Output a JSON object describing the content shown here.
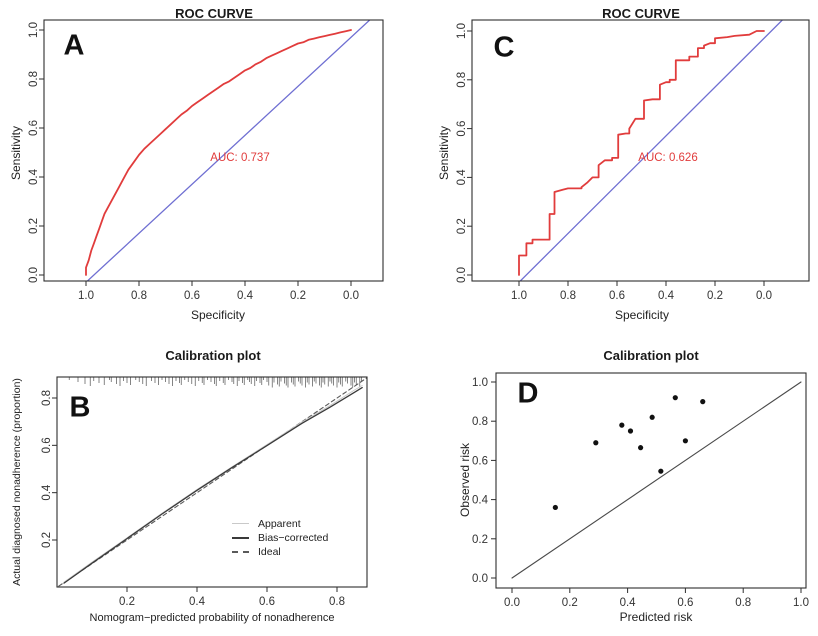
{
  "figure_background": "#ffffff",
  "colors": {
    "roc_curve": "#e13c3c",
    "reference_diagonal": "#6f6fd2",
    "frame": "#2e2e2e",
    "tick_text": "#333333",
    "apparent": "#c9c9c9",
    "bias_corrected": "#3a3a3a",
    "ideal": "#5a5a5a",
    "scatter_point": "#111111",
    "d_diagonal": "#4a4a4a",
    "rug": "#666666",
    "auc_text": "#e13c3c"
  },
  "chart_data": [
    {
      "id": "A",
      "letter": "A",
      "type": "line",
      "title": "ROC CURVE",
      "xlabel": "Specificity",
      "ylabel": "Sensitivity",
      "x_ticks": [
        "1.0",
        "0.8",
        "0.6",
        "0.4",
        "0.2",
        "0.0"
      ],
      "x_tick_vals": [
        1.0,
        0.8,
        0.6,
        0.4,
        0.2,
        0.0
      ],
      "y_ticks": [
        "0.0",
        "0.2",
        "0.4",
        "0.6",
        "0.8",
        "1.0"
      ],
      "y_tick_vals": [
        0.0,
        0.2,
        0.4,
        0.6,
        0.8,
        1.0
      ],
      "xlim": [
        1.04,
        -0.04
      ],
      "ylim": [
        -0.04,
        1.04
      ],
      "x_axis_reversed": true,
      "annotation": "AUC: 0.737",
      "series": [
        {
          "name": "ROC curve",
          "color_key": "roc_curve",
          "width": 1.8,
          "points": [
            [
              1.0,
              0.0
            ],
            [
              1.0,
              0.03
            ],
            [
              0.99,
              0.06
            ],
            [
              0.98,
              0.1
            ],
            [
              0.97,
              0.13
            ],
            [
              0.96,
              0.16
            ],
            [
              0.95,
              0.19
            ],
            [
              0.94,
              0.22
            ],
            [
              0.93,
              0.25
            ],
            [
              0.92,
              0.27
            ],
            [
              0.9,
              0.31
            ],
            [
              0.88,
              0.35
            ],
            [
              0.86,
              0.39
            ],
            [
              0.84,
              0.43
            ],
            [
              0.82,
              0.46
            ],
            [
              0.8,
              0.49
            ],
            [
              0.78,
              0.515
            ],
            [
              0.76,
              0.535
            ],
            [
              0.74,
              0.555
            ],
            [
              0.72,
              0.575
            ],
            [
              0.7,
              0.595
            ],
            [
              0.68,
              0.615
            ],
            [
              0.66,
              0.635
            ],
            [
              0.64,
              0.655
            ],
            [
              0.62,
              0.67
            ],
            [
              0.6,
              0.69
            ],
            [
              0.58,
              0.705
            ],
            [
              0.56,
              0.72
            ],
            [
              0.54,
              0.735
            ],
            [
              0.52,
              0.75
            ],
            [
              0.5,
              0.765
            ],
            [
              0.48,
              0.78
            ],
            [
              0.46,
              0.79
            ],
            [
              0.44,
              0.805
            ],
            [
              0.42,
              0.82
            ],
            [
              0.4,
              0.835
            ],
            [
              0.38,
              0.845
            ],
            [
              0.36,
              0.86
            ],
            [
              0.34,
              0.87
            ],
            [
              0.32,
              0.885
            ],
            [
              0.3,
              0.895
            ],
            [
              0.28,
              0.905
            ],
            [
              0.26,
              0.915
            ],
            [
              0.24,
              0.925
            ],
            [
              0.22,
              0.935
            ],
            [
              0.2,
              0.945
            ],
            [
              0.18,
              0.95
            ],
            [
              0.16,
              0.96
            ],
            [
              0.14,
              0.965
            ],
            [
              0.12,
              0.97
            ],
            [
              0.1,
              0.975
            ],
            [
              0.08,
              0.98
            ],
            [
              0.06,
              0.985
            ],
            [
              0.04,
              0.99
            ],
            [
              0.02,
              0.995
            ],
            [
              0.0,
              1.0
            ]
          ]
        },
        {
          "name": "Reference diagonal",
          "color_key": "reference_diagonal",
          "width": 1.3,
          "points": [
            [
              1.07,
              -0.1
            ],
            [
              -0.12,
              1.09
            ]
          ]
        }
      ]
    },
    {
      "id": "C",
      "letter": "C",
      "type": "line",
      "title": "ROC CURVE",
      "xlabel": "Specificity",
      "ylabel": "Sensitivity",
      "x_ticks": [
        "1.0",
        "0.8",
        "0.6",
        "0.4",
        "0.2",
        "0.0"
      ],
      "x_tick_vals": [
        1.0,
        0.8,
        0.6,
        0.4,
        0.2,
        0.0
      ],
      "y_ticks": [
        "0.0",
        "0.2",
        "0.4",
        "0.6",
        "0.8",
        "1.0"
      ],
      "y_tick_vals": [
        0.0,
        0.2,
        0.4,
        0.6,
        0.8,
        1.0
      ],
      "xlim": [
        1.04,
        -0.04
      ],
      "ylim": [
        -0.04,
        1.04
      ],
      "x_axis_reversed": true,
      "annotation": "AUC: 0.626",
      "series": [
        {
          "name": "ROC curve",
          "color_key": "roc_curve",
          "width": 1.8,
          "points": [
            [
              1.0,
              0.0
            ],
            [
              1.0,
              0.08
            ],
            [
              0.97,
              0.08
            ],
            [
              0.97,
              0.13
            ],
            [
              0.945,
              0.13
            ],
            [
              0.945,
              0.145
            ],
            [
              0.875,
              0.145
            ],
            [
              0.875,
              0.25
            ],
            [
              0.855,
              0.25
            ],
            [
              0.855,
              0.34
            ],
            [
              0.82,
              0.35
            ],
            [
              0.8,
              0.355
            ],
            [
              0.745,
              0.355
            ],
            [
              0.745,
              0.36
            ],
            [
              0.72,
              0.38
            ],
            [
              0.7,
              0.4
            ],
            [
              0.675,
              0.4
            ],
            [
              0.675,
              0.45
            ],
            [
              0.65,
              0.47
            ],
            [
              0.62,
              0.47
            ],
            [
              0.62,
              0.48
            ],
            [
              0.595,
              0.48
            ],
            [
              0.595,
              0.575
            ],
            [
              0.565,
              0.58
            ],
            [
              0.55,
              0.58
            ],
            [
              0.55,
              0.6
            ],
            [
              0.525,
              0.64
            ],
            [
              0.49,
              0.64
            ],
            [
              0.49,
              0.715
            ],
            [
              0.455,
              0.72
            ],
            [
              0.425,
              0.72
            ],
            [
              0.425,
              0.78
            ],
            [
              0.4,
              0.79
            ],
            [
              0.385,
              0.79
            ],
            [
              0.385,
              0.8
            ],
            [
              0.36,
              0.8
            ],
            [
              0.36,
              0.88
            ],
            [
              0.305,
              0.88
            ],
            [
              0.305,
              0.895
            ],
            [
              0.27,
              0.895
            ],
            [
              0.27,
              0.93
            ],
            [
              0.245,
              0.93
            ],
            [
              0.245,
              0.94
            ],
            [
              0.22,
              0.95
            ],
            [
              0.2,
              0.95
            ],
            [
              0.2,
              0.97
            ],
            [
              0.15,
              0.975
            ],
            [
              0.12,
              0.98
            ],
            [
              0.06,
              0.985
            ],
            [
              0.03,
              1.0
            ],
            [
              0.0,
              1.0
            ]
          ]
        },
        {
          "name": "Reference diagonal",
          "color_key": "reference_diagonal",
          "width": 1.3,
          "points": [
            [
              1.07,
              -0.1
            ],
            [
              -0.12,
              1.09
            ]
          ]
        }
      ]
    },
    {
      "id": "B",
      "letter": "B",
      "type": "line",
      "title": "Calibration plot",
      "xlabel": "Nomogram−predicted probability of nonadherence",
      "ylabel": "Actual diagnosed nonadherence (proportion)",
      "x_ticks": [
        "0.2",
        "0.4",
        "0.6",
        "0.8"
      ],
      "x_tick_vals": [
        0.2,
        0.4,
        0.6,
        0.8
      ],
      "y_ticks": [
        "0.2",
        "0.4",
        "0.6",
        "0.8"
      ],
      "y_tick_vals": [
        0.2,
        0.4,
        0.6,
        0.8
      ],
      "xlim": [
        0.0,
        0.886
      ],
      "ylim": [
        0.0,
        0.889
      ],
      "x_axis_reversed": false,
      "legend": {
        "items": [
          {
            "label": "Apparent",
            "style": "apparent"
          },
          {
            "label": "Bias−corrected",
            "style": "bias"
          },
          {
            "label": "Ideal",
            "style": "ideal"
          }
        ]
      },
      "rug_positions": [
        0.035,
        0.06,
        0.08,
        0.095,
        0.105,
        0.12,
        0.135,
        0.15,
        0.155,
        0.17,
        0.18,
        0.19,
        0.2,
        0.21,
        0.225,
        0.235,
        0.245,
        0.255,
        0.27,
        0.28,
        0.29,
        0.3,
        0.31,
        0.32,
        0.33,
        0.34,
        0.35,
        0.355,
        0.365,
        0.375,
        0.385,
        0.395,
        0.405,
        0.415,
        0.42,
        0.43,
        0.44,
        0.45,
        0.455,
        0.465,
        0.475,
        0.48,
        0.49,
        0.5,
        0.505,
        0.515,
        0.52,
        0.53,
        0.535,
        0.545,
        0.55,
        0.555,
        0.565,
        0.57,
        0.58,
        0.585,
        0.59,
        0.6,
        0.605,
        0.615,
        0.62,
        0.63,
        0.635,
        0.64,
        0.65,
        0.655,
        0.66,
        0.67,
        0.675,
        0.68,
        0.69,
        0.695,
        0.7,
        0.71,
        0.715,
        0.72,
        0.73,
        0.735,
        0.74,
        0.75,
        0.755,
        0.76,
        0.765,
        0.775,
        0.78,
        0.785,
        0.79,
        0.8,
        0.805,
        0.81,
        0.815,
        0.825,
        0.83,
        0.84,
        0.845,
        0.85,
        0.855,
        0.865,
        0.87
      ],
      "series": [
        {
          "name": "Ideal",
          "color_key": "ideal",
          "width": 1.1,
          "dash": "4,3",
          "points": [
            [
              0.005,
              0.005
            ],
            [
              0.885,
              0.885
            ]
          ]
        },
        {
          "name": "Apparent",
          "color_key": "apparent",
          "width": 1.0,
          "points": [
            [
              0.02,
              0.022
            ],
            [
              0.1,
              0.106
            ],
            [
              0.2,
              0.209
            ],
            [
              0.3,
              0.313
            ],
            [
              0.4,
              0.413
            ],
            [
              0.5,
              0.509
            ],
            [
              0.6,
              0.603
            ],
            [
              0.7,
              0.698
            ],
            [
              0.78,
              0.768
            ],
            [
              0.85,
              0.834
            ],
            [
              0.872,
              0.853
            ]
          ]
        },
        {
          "name": "Bias-corrected",
          "color_key": "bias_corrected",
          "width": 1.3,
          "points": [
            [
              0.02,
              0.018
            ],
            [
              0.1,
              0.102
            ],
            [
              0.2,
              0.206
            ],
            [
              0.3,
              0.31
            ],
            [
              0.4,
              0.41
            ],
            [
              0.5,
              0.506
            ],
            [
              0.6,
              0.599
            ],
            [
              0.7,
              0.693
            ],
            [
              0.78,
              0.761
            ],
            [
              0.85,
              0.824
            ],
            [
              0.872,
              0.844
            ]
          ]
        }
      ]
    },
    {
      "id": "D",
      "letter": "D",
      "type": "scatter",
      "title": "Calibration plot",
      "xlabel": "Predicted risk",
      "ylabel": "Observed risk",
      "x_ticks": [
        "0.0",
        "0.2",
        "0.4",
        "0.6",
        "0.8",
        "1.0"
      ],
      "x_tick_vals": [
        0.0,
        0.2,
        0.4,
        0.6,
        0.8,
        1.0
      ],
      "y_ticks": [
        "0.0",
        "0.2",
        "0.4",
        "0.6",
        "0.8",
        "1.0"
      ],
      "y_tick_vals": [
        0.0,
        0.2,
        0.4,
        0.6,
        0.8,
        1.0
      ],
      "xlim": [
        -0.05,
        1.05
      ],
      "ylim": [
        -0.05,
        1.05
      ],
      "x_axis_reversed": false,
      "series": [
        {
          "name": "Identity line",
          "color_key": "d_diagonal",
          "width": 1.1,
          "points": [
            [
              0.0,
              0.0
            ],
            [
              1.0,
              1.0
            ]
          ]
        }
      ],
      "dots": [
        [
          0.15,
          0.36
        ],
        [
          0.29,
          0.69
        ],
        [
          0.38,
          0.78
        ],
        [
          0.41,
          0.75
        ],
        [
          0.445,
          0.665
        ],
        [
          0.485,
          0.82
        ],
        [
          0.515,
          0.545
        ],
        [
          0.565,
          0.92
        ],
        [
          0.6,
          0.7
        ],
        [
          0.66,
          0.9
        ]
      ]
    }
  ]
}
